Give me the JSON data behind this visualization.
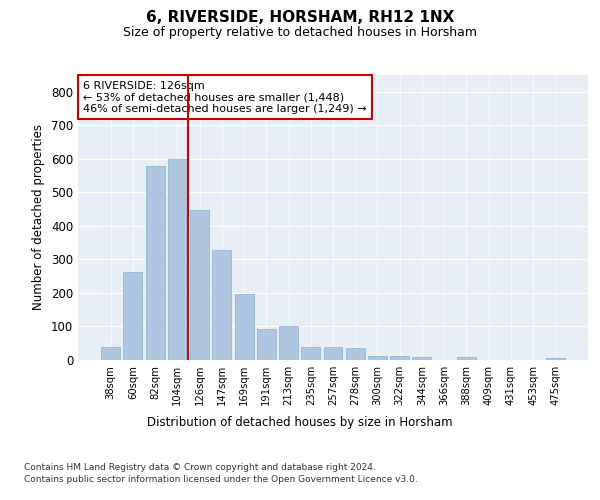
{
  "title": "6, RIVERSIDE, HORSHAM, RH12 1NX",
  "subtitle": "Size of property relative to detached houses in Horsham",
  "xlabel": "Distribution of detached houses by size in Horsham",
  "ylabel": "Number of detached properties",
  "categories": [
    "38sqm",
    "60sqm",
    "82sqm",
    "104sqm",
    "126sqm",
    "147sqm",
    "169sqm",
    "191sqm",
    "213sqm",
    "235sqm",
    "257sqm",
    "278sqm",
    "300sqm",
    "322sqm",
    "344sqm",
    "366sqm",
    "388sqm",
    "409sqm",
    "431sqm",
    "453sqm",
    "475sqm"
  ],
  "values": [
    40,
    262,
    580,
    600,
    448,
    328,
    196,
    92,
    102,
    40,
    40,
    35,
    13,
    13,
    10,
    0,
    8,
    0,
    0,
    0,
    5
  ],
  "bar_color": "#aec6e0",
  "bar_edge_color": "#8ab0d0",
  "vline_color": "#cc0000",
  "annotation_text": "6 RIVERSIDE: 126sqm\n← 53% of detached houses are smaller (1,448)\n46% of semi-detached houses are larger (1,249) →",
  "annotation_box_color": "#ffffff",
  "annotation_box_edge_color": "#cc0000",
  "ylim": [
    0,
    850
  ],
  "yticks": [
    0,
    100,
    200,
    300,
    400,
    500,
    600,
    700,
    800
  ],
  "background_color": "#e8eef5",
  "footer_line1": "Contains HM Land Registry data © Crown copyright and database right 2024.",
  "footer_line2": "Contains public sector information licensed under the Open Government Licence v3.0."
}
